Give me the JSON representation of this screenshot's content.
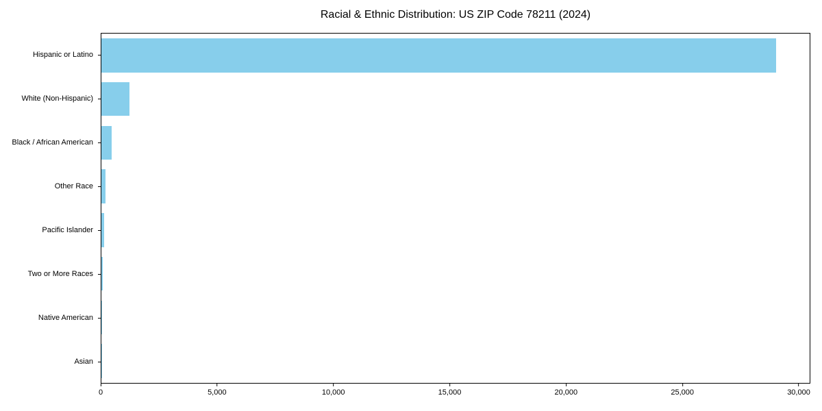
{
  "chart_data": {
    "type": "bar",
    "orientation": "horizontal",
    "title": "Racial & Ethnic Distribution: US ZIP Code 78211 (2024)",
    "categories": [
      "Hispanic or Latino",
      "White (Non-Hispanic)",
      "Black / African American",
      "Other Race",
      "Pacific Islander",
      "Two or More Races",
      "Native American",
      "Asian"
    ],
    "values": [
      29040,
      1200,
      450,
      175,
      120,
      45,
      10,
      5
    ],
    "xlabel": "",
    "ylabel": "",
    "xlim": [
      0,
      30500
    ],
    "x_ticks": [
      0,
      5000,
      10000,
      15000,
      20000,
      25000,
      30000
    ],
    "x_tick_labels": [
      "0",
      "5,000",
      "10,000",
      "15,000",
      "20,000",
      "25,000",
      "30,000"
    ],
    "bar_color": "#87CEEB",
    "background_color": "#ffffff",
    "axis_color": "#000000",
    "grid": false,
    "legend": null
  }
}
